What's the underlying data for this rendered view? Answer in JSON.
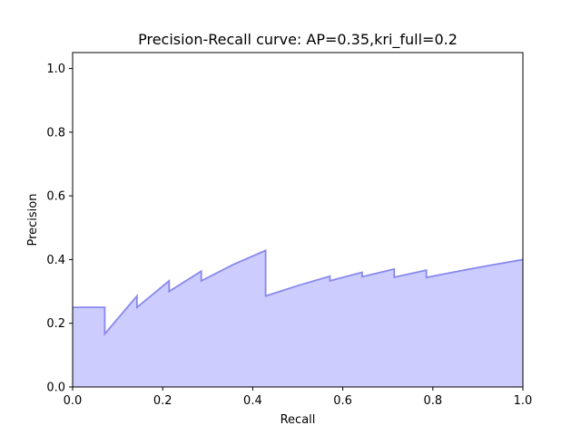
{
  "chart_data": {
    "type": "area",
    "title": "Precision-Recall curve: AP=0.35,kri_full=0.2",
    "xlabel": "Recall",
    "ylabel": "Precision",
    "xlim": [
      0.0,
      1.0
    ],
    "ylim": [
      0.0,
      1.05
    ],
    "grid": false,
    "x_ticks": [
      "0.0",
      "0.2",
      "0.4",
      "0.6",
      "0.8",
      "1.0"
    ],
    "y_ticks": [
      "0.0",
      "0.2",
      "0.4",
      "0.6",
      "0.8",
      "1.0"
    ],
    "step": "post",
    "fill_color": "#ccccff",
    "line_color": "#8888ee",
    "series": [
      {
        "recall": [
          0.0,
          0.0714,
          0.0714,
          0.1429,
          0.1429,
          0.2143,
          0.2143,
          0.2857,
          0.2857,
          0.3571,
          0.4286,
          0.4286,
          0.5,
          0.5714,
          0.5714,
          0.6429,
          0.6429,
          0.7143,
          0.7143,
          0.7857,
          0.7857,
          0.8571,
          0.9286,
          1.0
        ],
        "precision": [
          0.25,
          0.25,
          0.1667,
          0.2857,
          0.25,
          0.3333,
          0.3,
          0.3636,
          0.3333,
          0.3846,
          0.4286,
          0.2857,
          0.3182,
          0.3478,
          0.3333,
          0.36,
          0.3462,
          0.3704,
          0.3448,
          0.3667,
          0.3438,
          0.3636,
          0.3824,
          0.4
        ]
      }
    ]
  }
}
